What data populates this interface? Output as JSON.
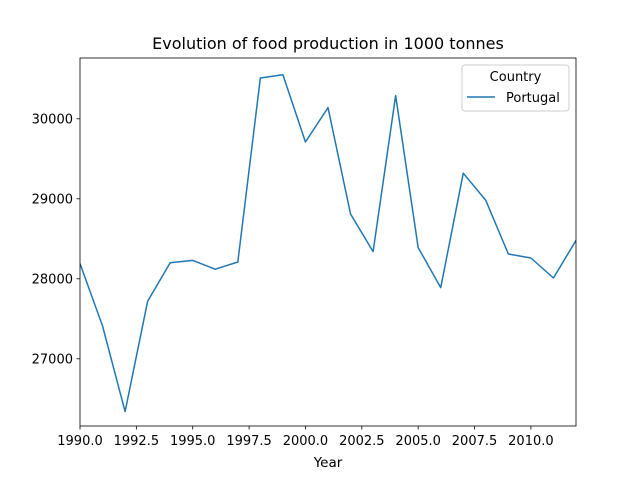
{
  "chart_data": {
    "type": "line",
    "title": "Evolution of food production in 1000 tonnes",
    "xlabel": "Year",
    "ylabel": "",
    "xlim": [
      1990,
      2012
    ],
    "ylim": [
      26160,
      30760
    ],
    "x_ticks": [
      1990.0,
      1992.5,
      1995.0,
      1997.5,
      2000.0,
      2002.5,
      2005.0,
      2007.5,
      2010.0
    ],
    "x_tick_labels": [
      "1990.0",
      "1992.5",
      "1995.0",
      "1997.5",
      "2000.0",
      "2002.5",
      "2005.0",
      "2007.5",
      "2010.0"
    ],
    "y_ticks": [
      27000,
      28000,
      29000,
      30000
    ],
    "y_tick_labels": [
      "27000",
      "28000",
      "29000",
      "30000"
    ],
    "grid": false,
    "legend": {
      "title": "Country",
      "placement": "top-right"
    },
    "series": [
      {
        "name": "Portugal",
        "color": "#1f77b4",
        "x": [
          1990,
          1991,
          1992,
          1993,
          1994,
          1995,
          1996,
          1997,
          1998,
          1999,
          2000,
          2001,
          2002,
          2003,
          2004,
          2005,
          2006,
          2007,
          2008,
          2009,
          2010,
          2011,
          2012
        ],
        "y": [
          28190,
          27410,
          26340,
          27720,
          28200,
          28230,
          28120,
          28210,
          30510,
          30550,
          29710,
          30140,
          28810,
          28340,
          30290,
          28390,
          27890,
          29320,
          28980,
          28310,
          28260,
          28010,
          28480
        ]
      }
    ]
  }
}
